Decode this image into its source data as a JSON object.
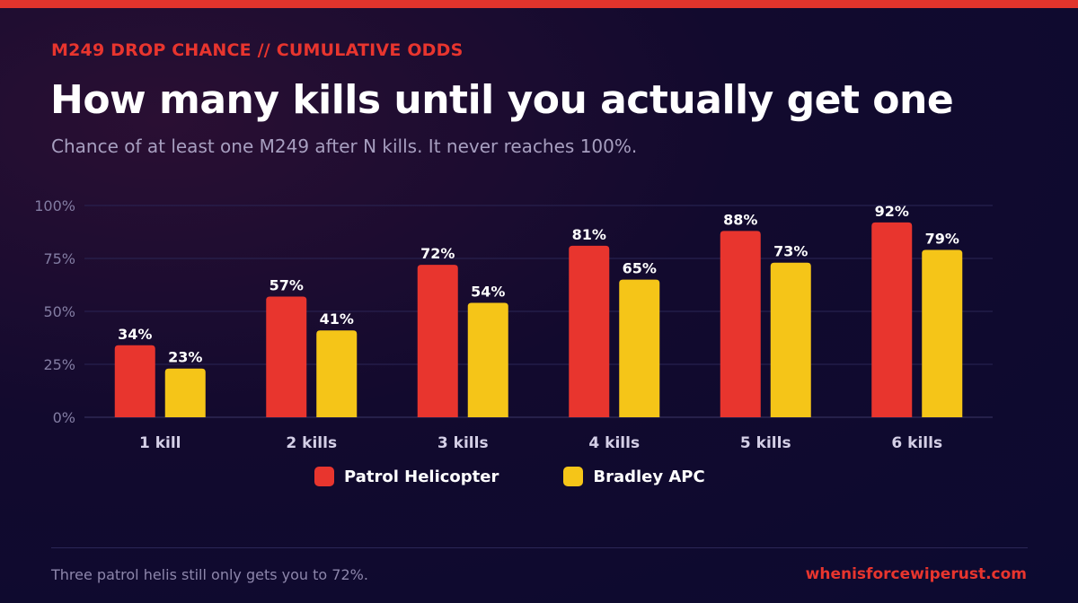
{
  "header": {
    "kicker": "M249 DROP CHANCE  //  CUMULATIVE ODDS",
    "title": "How many kills until you actually get one",
    "subtitle": "Chance of at least one M249 after N kills. It never reaches 100%."
  },
  "chart_data": {
    "type": "bar",
    "categories": [
      "1 kill",
      "2 kills",
      "3 kills",
      "4 kills",
      "5 kills",
      "6 kills"
    ],
    "series": [
      {
        "name": "Patrol Helicopter",
        "color": "#e8352e",
        "values": [
          34,
          57,
          72,
          81,
          88,
          92
        ],
        "labels": [
          "34%",
          "57%",
          "72%",
          "81%",
          "88%",
          "92%"
        ]
      },
      {
        "name": "Bradley APC",
        "color": "#f5c518",
        "values": [
          23,
          41,
          54,
          65,
          73,
          79
        ],
        "labels": [
          "23%",
          "41%",
          "54%",
          "65%",
          "73%",
          "79%"
        ]
      }
    ],
    "ylim": [
      0,
      100
    ],
    "yticks": [
      0,
      25,
      50,
      75,
      100
    ],
    "ytick_labels": [
      "0%",
      "25%",
      "50%",
      "75%",
      "100%"
    ],
    "grid": true,
    "legend_position": "bottom-center"
  },
  "footer": {
    "note": "Three patrol helis still only gets you to 72%.",
    "site": "whenisforcewiperust.com"
  },
  "colors": {
    "accent": "#e8352e",
    "background": "#120a2e",
    "muted_text": "#a79fc0"
  }
}
